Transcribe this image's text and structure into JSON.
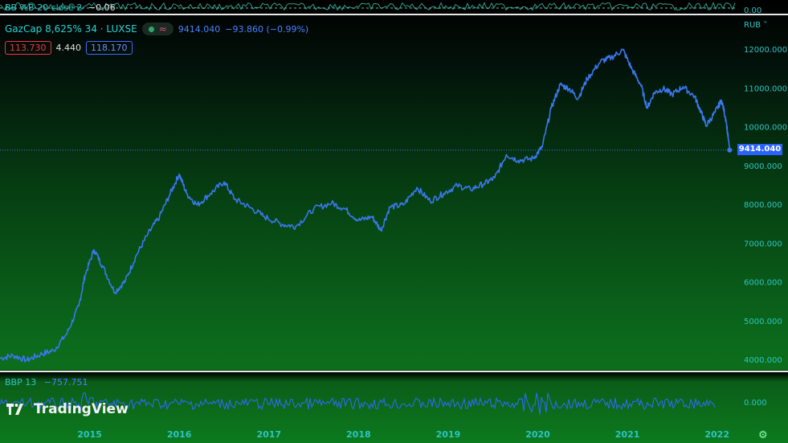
{
  "top_indicator": {
    "label": "BB %B 20 close 2",
    "value": "−0.06",
    "scale": "0.00"
  },
  "legend": {
    "title": "GazCap 8,625% 34 · LUXSE",
    "last": "9414.040",
    "change": "−93.860 (−0.99%)",
    "box_red": "113.730",
    "box_plain": "4.440",
    "box_blue": "118.170"
  },
  "currency": "RUB ˅",
  "last_price_tag": "9414.040",
  "bottom_indicator": {
    "label": "BBP 13",
    "value": "−757.751",
    "scale": "0.000"
  },
  "brand": "TradingView",
  "colors": {
    "line": "#3a78f0",
    "accent": "#26c6c6",
    "red": "#f23645",
    "tag": "#2962ff"
  },
  "chart_data": {
    "type": "line",
    "title": "",
    "xlabel": "",
    "ylabel": "",
    "x_ticks": [
      "2015",
      "2016",
      "2017",
      "2018",
      "2019",
      "2020",
      "2021",
      "2022"
    ],
    "y_ticks": [
      "4000.000",
      "5000.000",
      "6000.000",
      "7000.000",
      "8000.000",
      "9000.000",
      "10000.000",
      "11000.000",
      "12000.000"
    ],
    "ylim": [
      3850,
      12300
    ],
    "xlim": [
      2014.0,
      2022.2
    ],
    "series": [
      {
        "points": [
          [
            2014.0,
            4050
          ],
          [
            2014.15,
            4120
          ],
          [
            2014.3,
            4000
          ],
          [
            2014.45,
            4150
          ],
          [
            2014.6,
            4250
          ],
          [
            2014.75,
            4700
          ],
          [
            2014.88,
            5400
          ],
          [
            2014.95,
            6200
          ],
          [
            2015.05,
            6850
          ],
          [
            2015.15,
            6400
          ],
          [
            2015.28,
            5750
          ],
          [
            2015.4,
            6050
          ],
          [
            2015.52,
            6700
          ],
          [
            2015.65,
            7250
          ],
          [
            2015.78,
            7700
          ],
          [
            2015.9,
            8300
          ],
          [
            2016.0,
            8800
          ],
          [
            2016.08,
            8300
          ],
          [
            2016.2,
            8000
          ],
          [
            2016.35,
            8300
          ],
          [
            2016.5,
            8600
          ],
          [
            2016.62,
            8150
          ],
          [
            2016.78,
            7950
          ],
          [
            2016.95,
            7700
          ],
          [
            2017.15,
            7500
          ],
          [
            2017.3,
            7450
          ],
          [
            2017.5,
            7900
          ],
          [
            2017.7,
            8050
          ],
          [
            2017.85,
            7900
          ],
          [
            2018.0,
            7600
          ],
          [
            2018.15,
            7700
          ],
          [
            2018.25,
            7350
          ],
          [
            2018.35,
            7950
          ],
          [
            2018.5,
            8000
          ],
          [
            2018.65,
            8450
          ],
          [
            2018.8,
            8100
          ],
          [
            2018.95,
            8300
          ],
          [
            2019.1,
            8500
          ],
          [
            2019.25,
            8400
          ],
          [
            2019.4,
            8550
          ],
          [
            2019.52,
            8700
          ],
          [
            2019.65,
            9300
          ],
          [
            2019.78,
            9150
          ],
          [
            2019.95,
            9200
          ],
          [
            2020.05,
            9500
          ],
          [
            2020.15,
            10500
          ],
          [
            2020.25,
            11100
          ],
          [
            2020.35,
            11000
          ],
          [
            2020.45,
            10750
          ],
          [
            2020.55,
            11250
          ],
          [
            2020.7,
            11700
          ],
          [
            2020.82,
            11800
          ],
          [
            2020.95,
            12000
          ],
          [
            2021.05,
            11500
          ],
          [
            2021.15,
            11100
          ],
          [
            2021.22,
            10500
          ],
          [
            2021.3,
            10900
          ],
          [
            2021.4,
            11000
          ],
          [
            2021.5,
            10850
          ],
          [
            2021.62,
            11050
          ],
          [
            2021.75,
            10800
          ],
          [
            2021.82,
            10400
          ],
          [
            2021.88,
            10050
          ],
          [
            2021.98,
            10400
          ],
          [
            2022.05,
            10700
          ],
          [
            2022.1,
            10200
          ],
          [
            2022.14,
            9414
          ]
        ]
      }
    ]
  }
}
